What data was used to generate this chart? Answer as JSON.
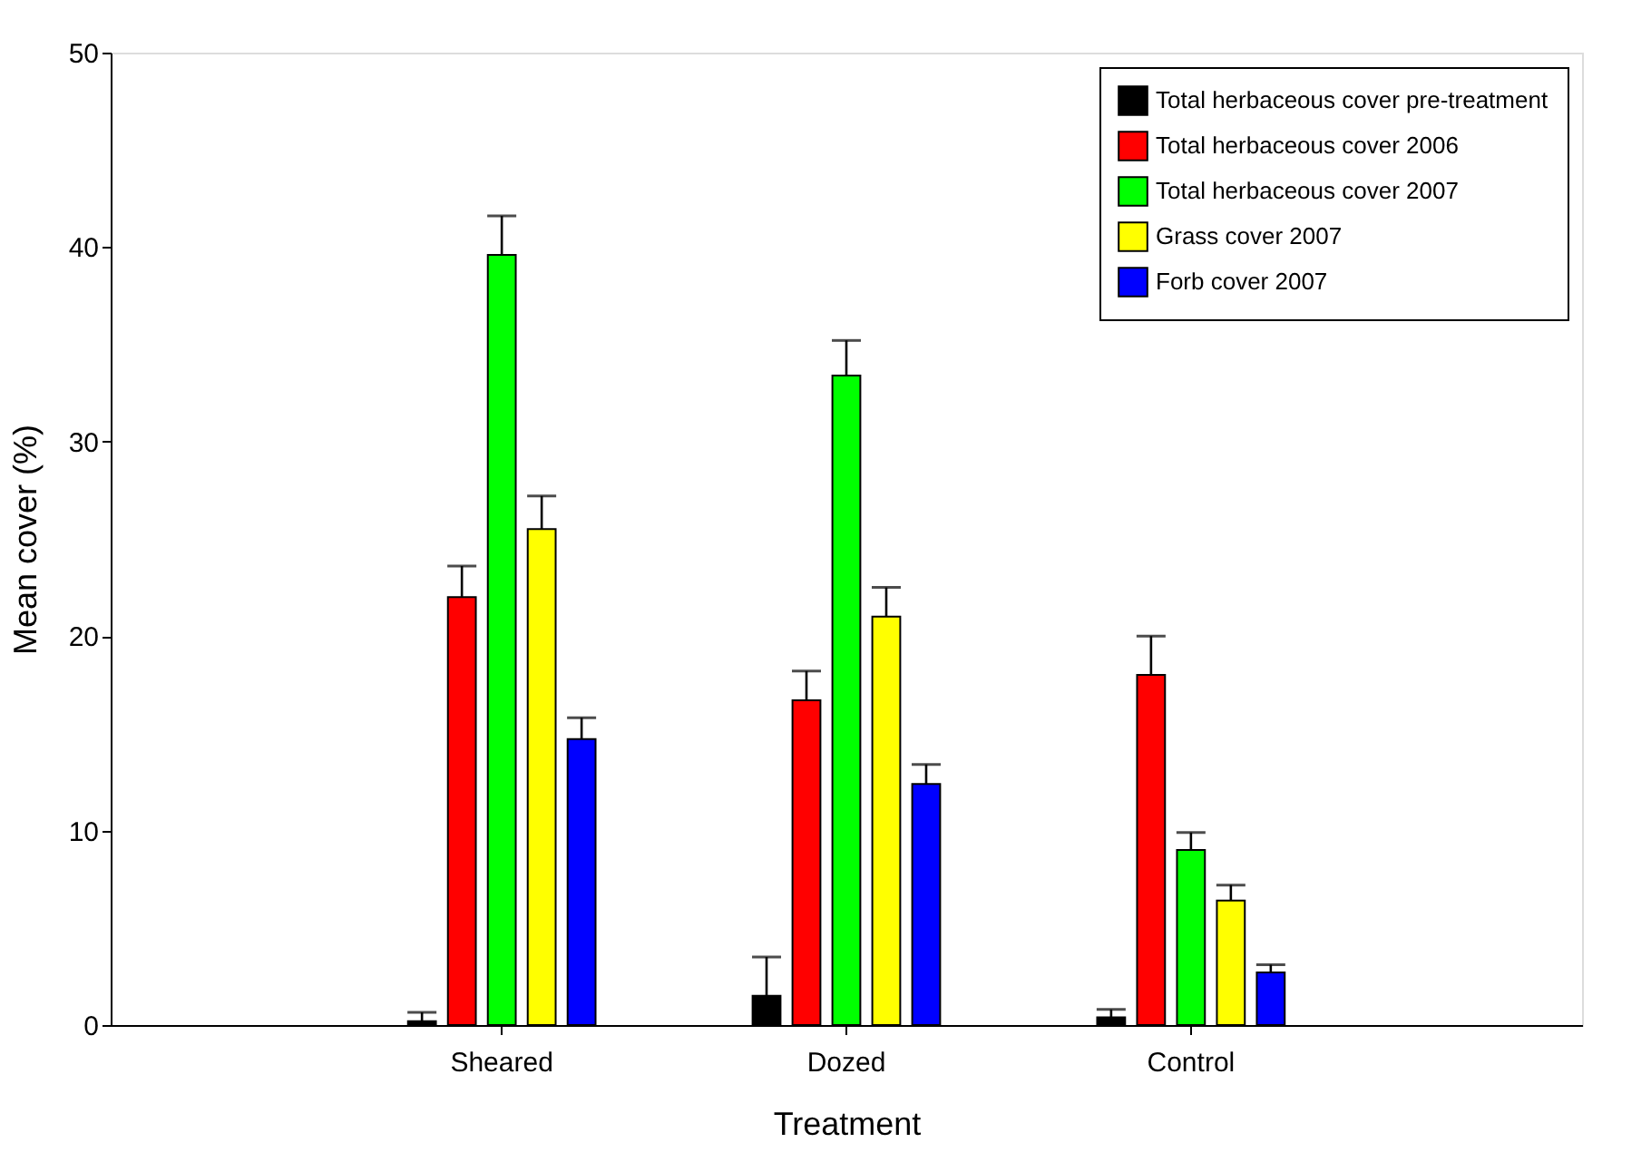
{
  "chart_data": {
    "type": "bar",
    "xlabel": "Treatment",
    "ylabel": "Mean cover (%)",
    "categories": [
      "Sheared",
      "Dozed",
      "Control"
    ],
    "ylim": [
      0,
      50
    ],
    "yticks": [
      0,
      10,
      20,
      30,
      40,
      50
    ],
    "grid": false,
    "legend": "top right",
    "series": [
      {
        "name": "Total herbaceous cover pre-treatment",
        "color": "#000000",
        "values": [
          0.2,
          1.5,
          0.4
        ],
        "errors": [
          0.45,
          2.0,
          0.4
        ]
      },
      {
        "name": "Total herbaceous cover 2006",
        "color": "#ff0000",
        "values": [
          22.0,
          16.7,
          18.0
        ],
        "errors": [
          1.6,
          1.5,
          2.0
        ]
      },
      {
        "name": "Total herbaceous cover 2007",
        "color": "#00ff00",
        "values": [
          39.6,
          33.4,
          9.0
        ],
        "errors": [
          2.0,
          1.8,
          0.9
        ]
      },
      {
        "name": "Grass cover 2007",
        "color": "#ffff00",
        "values": [
          25.5,
          21.0,
          6.4
        ],
        "errors": [
          1.7,
          1.5,
          0.8
        ]
      },
      {
        "name": "Forb cover 2007",
        "color": "#0000ff",
        "values": [
          14.7,
          12.4,
          2.7
        ],
        "errors": [
          1.1,
          1.0,
          0.4
        ]
      }
    ]
  }
}
